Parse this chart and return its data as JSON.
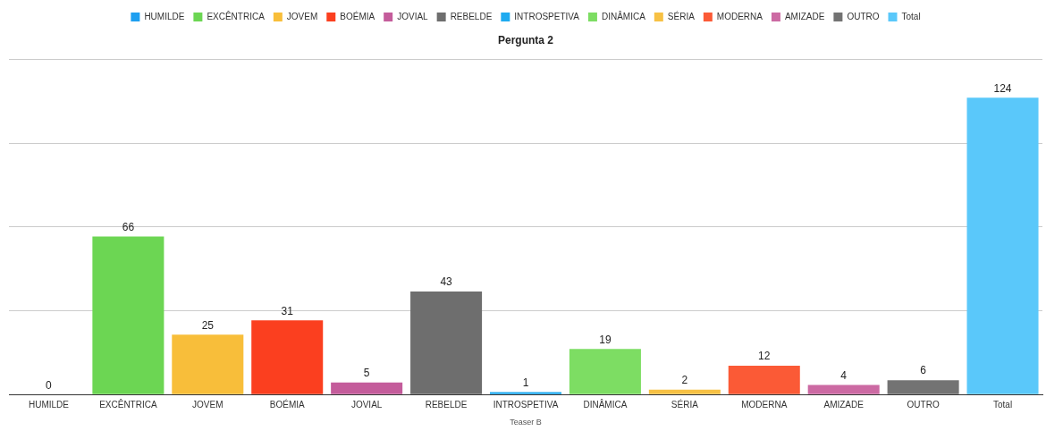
{
  "chart_data": {
    "type": "bar",
    "title": "Pergunta 2",
    "xlabel": "Teaser B",
    "categories": [
      "HUMILDE",
      "EXCÊNTRICA",
      "JOVEM",
      "BOÉMIA",
      "JOVIAL",
      "REBELDE",
      "INTROSPETIVA",
      "DINÂMICA",
      "SÉRIA",
      "MODERNA",
      "AMIZADE",
      "OUTRO",
      "Total"
    ],
    "series": [
      {
        "name": "HUMILDE",
        "color": "#1e9ff0",
        "values": [
          0,
          null,
          null,
          null,
          null,
          null,
          null,
          null,
          null,
          null,
          null,
          null,
          null
        ]
      },
      {
        "name": "EXCÊNTRICA",
        "color": "#6cd653",
        "values": [
          null,
          66,
          null,
          null,
          null,
          null,
          null,
          null,
          null,
          null,
          null,
          null,
          null
        ]
      },
      {
        "name": "JOVEM",
        "color": "#f8be3a",
        "values": [
          null,
          null,
          25,
          null,
          null,
          null,
          null,
          null,
          null,
          null,
          null,
          null,
          null
        ]
      },
      {
        "name": "BOÉMIA",
        "color": "#fb3f1f",
        "values": [
          null,
          null,
          null,
          31,
          null,
          null,
          null,
          null,
          null,
          null,
          null,
          null,
          null
        ]
      },
      {
        "name": "JOVIAL",
        "color": "#c45c9b",
        "values": [
          null,
          null,
          null,
          null,
          5,
          null,
          null,
          null,
          null,
          null,
          null,
          null,
          null
        ]
      },
      {
        "name": "REBELDE",
        "color": "#6e6e6e",
        "values": [
          null,
          null,
          null,
          null,
          null,
          43,
          null,
          null,
          null,
          null,
          null,
          null,
          null
        ]
      },
      {
        "name": "INTROSPETIVA",
        "color": "#1eaaf0",
        "values": [
          null,
          null,
          null,
          null,
          null,
          null,
          1,
          null,
          null,
          null,
          null,
          null,
          null
        ]
      },
      {
        "name": "DINÂMICA",
        "color": "#7ddd63",
        "values": [
          null,
          null,
          null,
          null,
          null,
          null,
          null,
          19,
          null,
          null,
          null,
          null,
          null
        ]
      },
      {
        "name": "SÉRIA",
        "color": "#f7c144",
        "values": [
          null,
          null,
          null,
          null,
          null,
          null,
          null,
          null,
          2,
          null,
          null,
          null,
          null
        ]
      },
      {
        "name": "MODERNA",
        "color": "#fb5a36",
        "values": [
          null,
          null,
          null,
          null,
          null,
          null,
          null,
          null,
          null,
          12,
          null,
          null,
          null
        ]
      },
      {
        "name": "AMIZADE",
        "color": "#cc6aa3",
        "values": [
          null,
          null,
          null,
          null,
          null,
          null,
          null,
          null,
          null,
          null,
          4,
          null,
          null
        ]
      },
      {
        "name": "OUTRO",
        "color": "#737373",
        "values": [
          null,
          null,
          null,
          null,
          null,
          null,
          null,
          null,
          null,
          null,
          null,
          6,
          null
        ]
      },
      {
        "name": "Total",
        "color": "#5ac8fa",
        "values": [
          null,
          null,
          null,
          null,
          null,
          null,
          null,
          null,
          null,
          null,
          null,
          null,
          124
        ]
      }
    ],
    "ylim": [
      0,
      140
    ],
    "yticks": [
      {
        "value": 0,
        "label": null
      },
      {
        "value": 35,
        "label": null
      },
      {
        "value": 70,
        "label": null
      },
      {
        "value": 105,
        "label": null
      },
      {
        "value": 140,
        "label": null
      }
    ],
    "tick_labels": "x",
    "grid": "y",
    "legend": "top",
    "data_labels": true
  }
}
